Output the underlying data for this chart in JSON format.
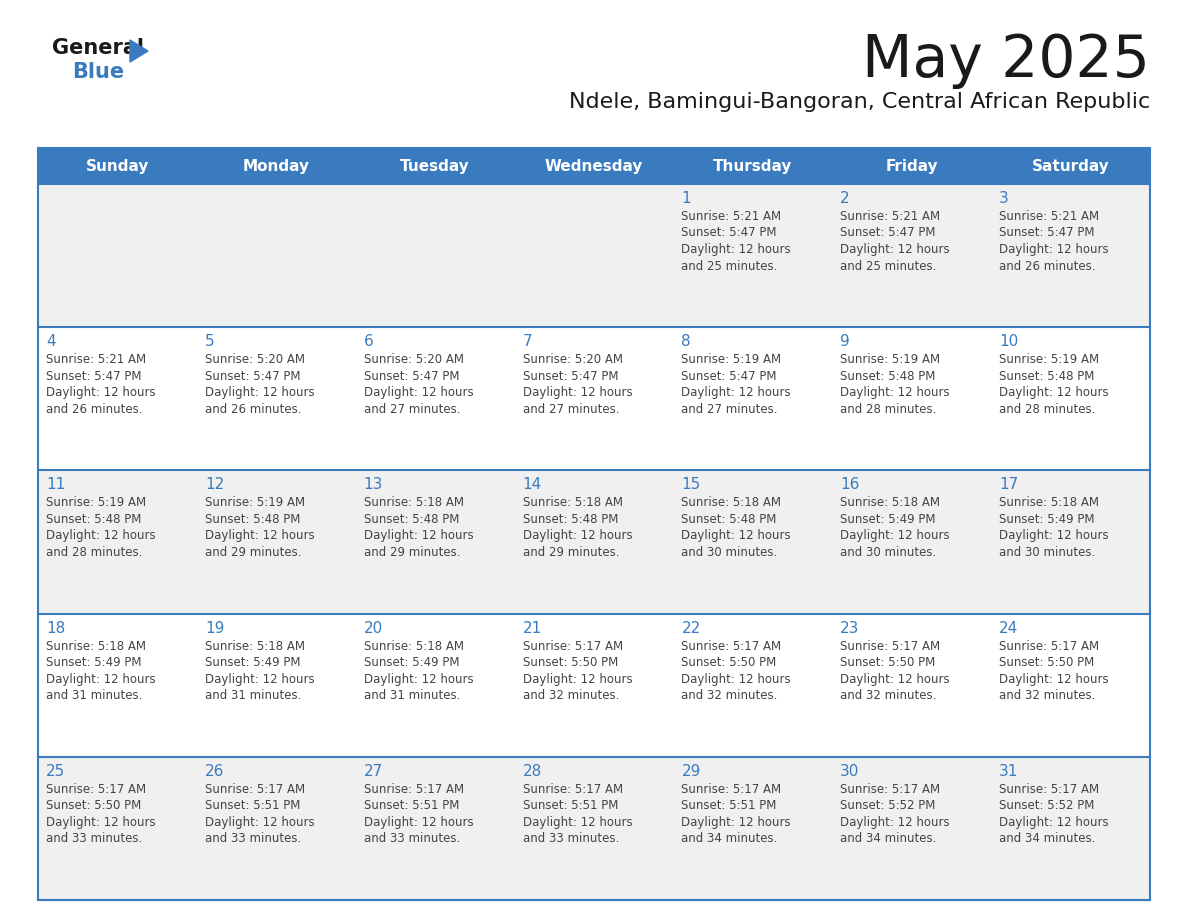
{
  "title": "May 2025",
  "subtitle": "Ndele, Bamingui-Bangoran, Central African Republic",
  "days_of_week": [
    "Sunday",
    "Monday",
    "Tuesday",
    "Wednesday",
    "Thursday",
    "Friday",
    "Saturday"
  ],
  "header_bg": "#3a7abf",
  "header_text": "#ffffff",
  "row_bg_odd": "#f0f0f0",
  "row_bg_even": "#ffffff",
  "day_number_color": "#3a7abf",
  "text_color": "#444444",
  "line_color": "#3a7abf",
  "calendar_data": [
    [
      null,
      null,
      null,
      null,
      {
        "day": 1,
        "sunrise": "5:21 AM",
        "sunset": "5:47 PM",
        "daylight": "12 hours and 25 minutes."
      },
      {
        "day": 2,
        "sunrise": "5:21 AM",
        "sunset": "5:47 PM",
        "daylight": "12 hours and 25 minutes."
      },
      {
        "day": 3,
        "sunrise": "5:21 AM",
        "sunset": "5:47 PM",
        "daylight": "12 hours and 26 minutes."
      }
    ],
    [
      {
        "day": 4,
        "sunrise": "5:21 AM",
        "sunset": "5:47 PM",
        "daylight": "12 hours and 26 minutes."
      },
      {
        "day": 5,
        "sunrise": "5:20 AM",
        "sunset": "5:47 PM",
        "daylight": "12 hours and 26 minutes."
      },
      {
        "day": 6,
        "sunrise": "5:20 AM",
        "sunset": "5:47 PM",
        "daylight": "12 hours and 27 minutes."
      },
      {
        "day": 7,
        "sunrise": "5:20 AM",
        "sunset": "5:47 PM",
        "daylight": "12 hours and 27 minutes."
      },
      {
        "day": 8,
        "sunrise": "5:19 AM",
        "sunset": "5:47 PM",
        "daylight": "12 hours and 27 minutes."
      },
      {
        "day": 9,
        "sunrise": "5:19 AM",
        "sunset": "5:48 PM",
        "daylight": "12 hours and 28 minutes."
      },
      {
        "day": 10,
        "sunrise": "5:19 AM",
        "sunset": "5:48 PM",
        "daylight": "12 hours and 28 minutes."
      }
    ],
    [
      {
        "day": 11,
        "sunrise": "5:19 AM",
        "sunset": "5:48 PM",
        "daylight": "12 hours and 28 minutes."
      },
      {
        "day": 12,
        "sunrise": "5:19 AM",
        "sunset": "5:48 PM",
        "daylight": "12 hours and 29 minutes."
      },
      {
        "day": 13,
        "sunrise": "5:18 AM",
        "sunset": "5:48 PM",
        "daylight": "12 hours and 29 minutes."
      },
      {
        "day": 14,
        "sunrise": "5:18 AM",
        "sunset": "5:48 PM",
        "daylight": "12 hours and 29 minutes."
      },
      {
        "day": 15,
        "sunrise": "5:18 AM",
        "sunset": "5:48 PM",
        "daylight": "12 hours and 30 minutes."
      },
      {
        "day": 16,
        "sunrise": "5:18 AM",
        "sunset": "5:49 PM",
        "daylight": "12 hours and 30 minutes."
      },
      {
        "day": 17,
        "sunrise": "5:18 AM",
        "sunset": "5:49 PM",
        "daylight": "12 hours and 30 minutes."
      }
    ],
    [
      {
        "day": 18,
        "sunrise": "5:18 AM",
        "sunset": "5:49 PM",
        "daylight": "12 hours and 31 minutes."
      },
      {
        "day": 19,
        "sunrise": "5:18 AM",
        "sunset": "5:49 PM",
        "daylight": "12 hours and 31 minutes."
      },
      {
        "day": 20,
        "sunrise": "5:18 AM",
        "sunset": "5:49 PM",
        "daylight": "12 hours and 31 minutes."
      },
      {
        "day": 21,
        "sunrise": "5:17 AM",
        "sunset": "5:50 PM",
        "daylight": "12 hours and 32 minutes."
      },
      {
        "day": 22,
        "sunrise": "5:17 AM",
        "sunset": "5:50 PM",
        "daylight": "12 hours and 32 minutes."
      },
      {
        "day": 23,
        "sunrise": "5:17 AM",
        "sunset": "5:50 PM",
        "daylight": "12 hours and 32 minutes."
      },
      {
        "day": 24,
        "sunrise": "5:17 AM",
        "sunset": "5:50 PM",
        "daylight": "12 hours and 32 minutes."
      }
    ],
    [
      {
        "day": 25,
        "sunrise": "5:17 AM",
        "sunset": "5:50 PM",
        "daylight": "12 hours and 33 minutes."
      },
      {
        "day": 26,
        "sunrise": "5:17 AM",
        "sunset": "5:51 PM",
        "daylight": "12 hours and 33 minutes."
      },
      {
        "day": 27,
        "sunrise": "5:17 AM",
        "sunset": "5:51 PM",
        "daylight": "12 hours and 33 minutes."
      },
      {
        "day": 28,
        "sunrise": "5:17 AM",
        "sunset": "5:51 PM",
        "daylight": "12 hours and 33 minutes."
      },
      {
        "day": 29,
        "sunrise": "5:17 AM",
        "sunset": "5:51 PM",
        "daylight": "12 hours and 34 minutes."
      },
      {
        "day": 30,
        "sunrise": "5:17 AM",
        "sunset": "5:52 PM",
        "daylight": "12 hours and 34 minutes."
      },
      {
        "day": 31,
        "sunrise": "5:17 AM",
        "sunset": "5:52 PM",
        "daylight": "12 hours and 34 minutes."
      }
    ]
  ]
}
